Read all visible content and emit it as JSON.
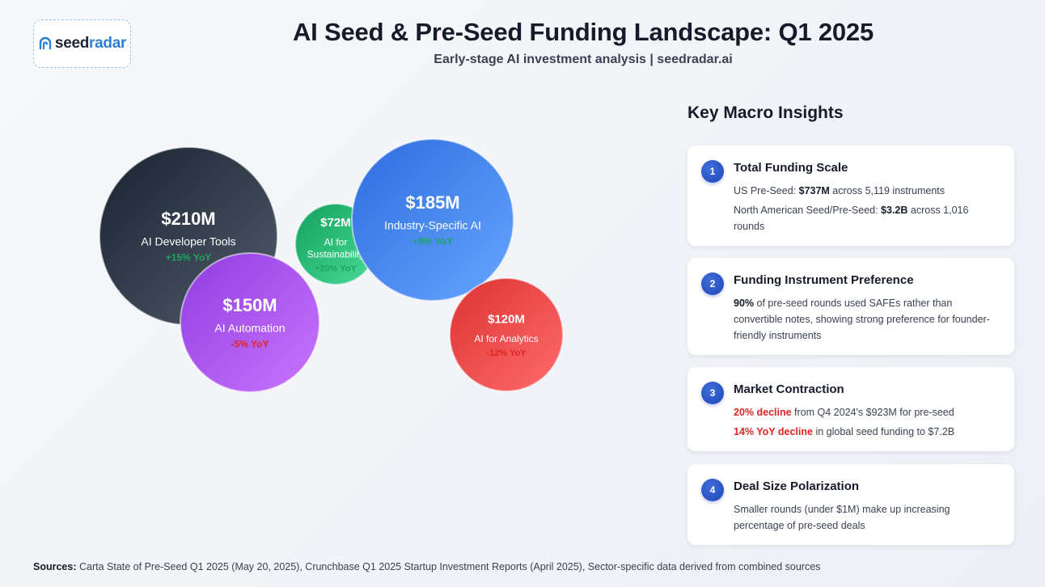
{
  "logo": {
    "part1": "seed",
    "part2": "radar"
  },
  "header": {
    "title": "AI Seed & Pre-Seed Funding Landscape: Q1 2025",
    "subtitle": "Early-stage AI investment analysis | seedradar.ai"
  },
  "chart_data": {
    "type": "bubble",
    "title": "",
    "series": [
      {
        "name": "AI Developer Tools",
        "label_lines": [
          "AI Developer Tools"
        ],
        "amount_label": "$210M",
        "value": 210,
        "yoy_label": "+15% YoY",
        "yoy": 15,
        "color": "#2a3442"
      },
      {
        "name": "AI for Sustainability",
        "label_lines": [
          "AI for",
          "Sustainability"
        ],
        "amount_label": "$72M",
        "value": 72,
        "yoy_label": "+20% YoY",
        "yoy": 20,
        "color": "#22b36f"
      },
      {
        "name": "Industry-Specific AI",
        "label_lines": [
          "Industry-Specific AI"
        ],
        "amount_label": "$185M",
        "value": 185,
        "yoy_label": "+8% YoY",
        "yoy": 8,
        "color": "#3f7ef0"
      },
      {
        "name": "AI Automation",
        "label_lines": [
          "AI Automation"
        ],
        "amount_label": "$150M",
        "value": 150,
        "yoy_label": "-5% YoY",
        "yoy": -5,
        "color": "#a24ef2"
      },
      {
        "name": "AI for Analytics",
        "label_lines": [
          "AI for Analytics"
        ],
        "amount_label": "$120M",
        "value": 120,
        "yoy_label": "-12% YoY",
        "yoy": -12,
        "color": "#ee4444"
      }
    ],
    "colors": {
      "positive": "#1fa463",
      "negative": "#e02424"
    }
  },
  "insights": {
    "heading": "Key Macro Insights",
    "cards": [
      {
        "num": "1",
        "title": "Total Funding Scale",
        "l1a": "US Pre-Seed: ",
        "l1b": "$737M",
        "l1c": " across 5,119 instruments",
        "l2a": "North American Seed/Pre-Seed: ",
        "l2b": "$3.2B",
        "l2c": " across 1,016 rounds"
      },
      {
        "num": "2",
        "title": "Funding Instrument Preference",
        "l1a": "90%",
        "l1b": " of pre-seed rounds used SAFEs rather than convertible notes, showing strong preference for founder-friendly instruments"
      },
      {
        "num": "3",
        "title": "Market Contraction",
        "l1a": "20% decline",
        "l1b": " from Q4 2024's $923M for pre-seed",
        "l2a": "14% YoY decline",
        "l2b": " in global seed funding to $7.2B"
      },
      {
        "num": "4",
        "title": "Deal Size Polarization",
        "l1a": "Smaller rounds (under $1M) make up increasing percentage of pre-seed deals"
      }
    ]
  },
  "footer": {
    "label": "Sources:",
    "text": " Carta State of Pre-Seed Q1 2025 (May 20, 2025), Crunchbase Q1 2025 Startup Investment Reports (April 2025), Sector-specific data derived from combined sources"
  }
}
